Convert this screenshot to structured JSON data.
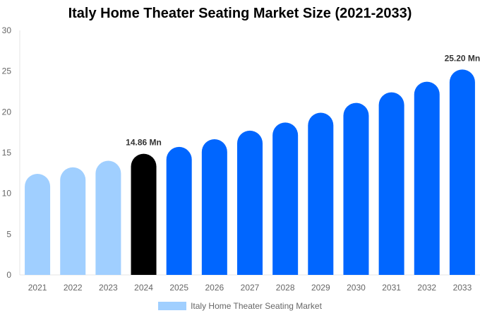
{
  "chart_data": {
    "type": "bar",
    "title": "Italy Home Theater Seating Market Size (2021-2033)",
    "categories": [
      "2021",
      "2022",
      "2023",
      "2024",
      "2025",
      "2026",
      "2027",
      "2028",
      "2029",
      "2030",
      "2031",
      "2032",
      "2033"
    ],
    "series": [
      {
        "name": "Italy Home Theater Seating Market",
        "values": [
          12.4,
          13.2,
          14.0,
          14.86,
          15.7,
          16.65,
          17.7,
          18.7,
          19.9,
          21.1,
          22.4,
          23.7,
          25.2
        ]
      }
    ],
    "data_labels": {
      "2024": "14.86 Mn",
      "2033": "25.20 Mn"
    },
    "ylim": [
      0,
      30
    ],
    "yticks": [
      0,
      5,
      10,
      15,
      20,
      25,
      30
    ],
    "grid": false,
    "legend": "bottom",
    "colors": {
      "historical": "#a0cfff",
      "base_year": "#000000",
      "forecast": "#0066ff"
    }
  }
}
